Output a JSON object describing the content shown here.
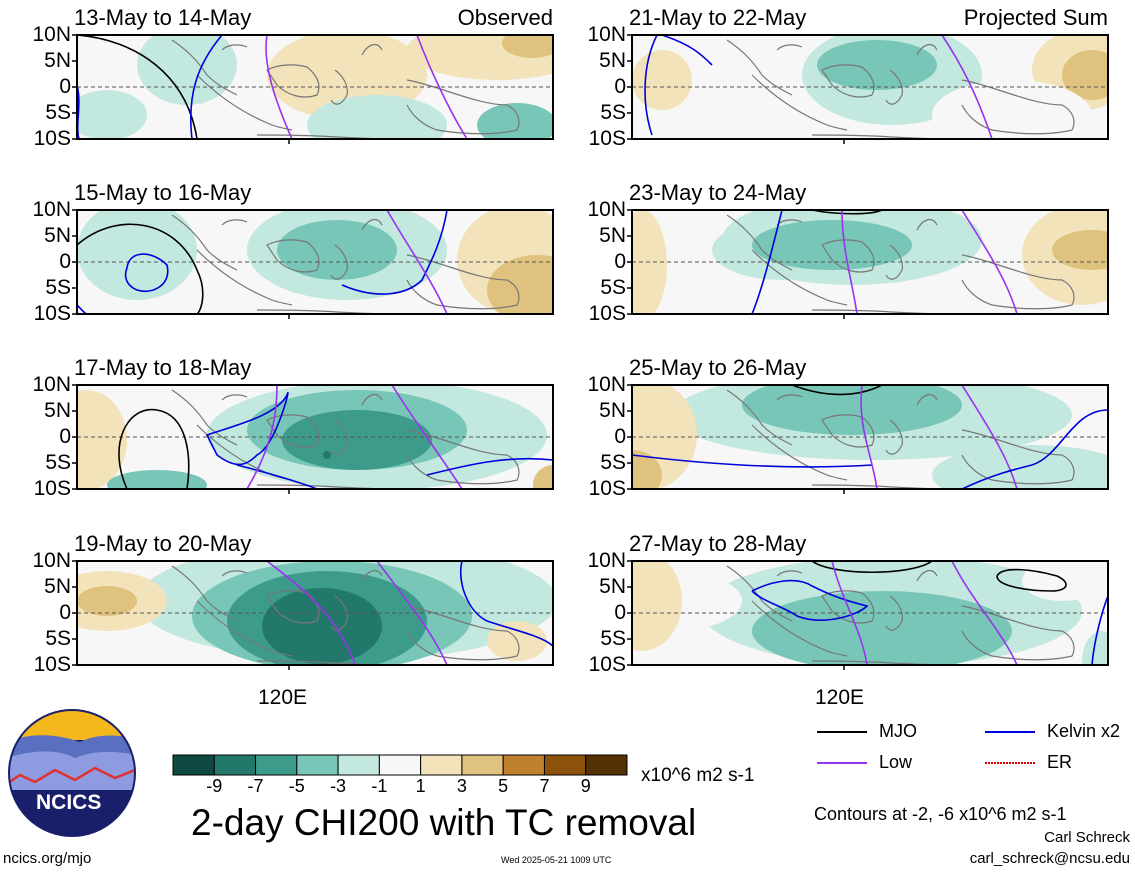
{
  "panels": [
    {
      "column": "left",
      "row": 0,
      "date_label": "13-May to 14-May",
      "tag": "Observed"
    },
    {
      "column": "left",
      "row": 1,
      "date_label": "15-May to 16-May",
      "tag": ""
    },
    {
      "column": "left",
      "row": 2,
      "date_label": "17-May to 18-May",
      "tag": ""
    },
    {
      "column": "left",
      "row": 3,
      "date_label": "19-May to 20-May",
      "tag": ""
    },
    {
      "column": "right",
      "row": 0,
      "date_label": "21-May to 22-May",
      "tag": "Projected Sum"
    },
    {
      "column": "right",
      "row": 1,
      "date_label": "23-May to 24-May",
      "tag": ""
    },
    {
      "column": "right",
      "row": 2,
      "date_label": "25-May to 26-May",
      "tag": ""
    },
    {
      "column": "right",
      "row": 3,
      "date_label": "27-May to 28-May",
      "tag": ""
    }
  ],
  "lat_labels": [
    "10N",
    "5N",
    "0",
    "5S",
    "10S"
  ],
  "lon_label": "120E",
  "colorbar": {
    "tick_labels": [
      "-9",
      "-7",
      "-5",
      "-3",
      "-1",
      "1",
      "3",
      "5",
      "7",
      "9"
    ],
    "colors": [
      "#0f4a42",
      "#21786b",
      "#3d9b8c",
      "#78c6b7",
      "#c2e8df",
      "#f7f7f7",
      "#f3e3ba",
      "#dfc27d",
      "#bf812d",
      "#8c510a",
      "#543005"
    ],
    "units": "x10^6 m2 s-1"
  },
  "title": "2-day CHI200 with TC removal",
  "legend": [
    {
      "label": "MJO",
      "color": "#000000"
    },
    {
      "label": "Kelvin x2",
      "color": "#0000dd"
    },
    {
      "label": "Low",
      "color": "#9933ee"
    },
    {
      "label": "ER",
      "color": "#dd0000"
    }
  ],
  "contours_note": "Contours at -2, -6 x10^6 m2 s-1",
  "author": "Carl Schreck",
  "email": "carl_schreck@ncsu.edu",
  "logo_text": "NCICS",
  "website": "ncics.org/mjo",
  "timestamp": "Wed 2025-05-21 1009 UTC"
}
